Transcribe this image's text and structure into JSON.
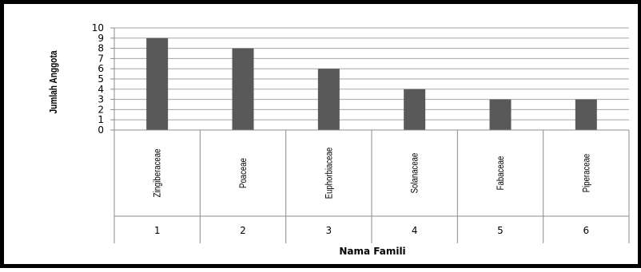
{
  "chart_data": {
    "type": "bar",
    "categories": [
      "1",
      "2",
      "3",
      "4",
      "5",
      "6"
    ],
    "category_names": [
      "Zingiberaceae",
      "Poaceae",
      "Euphorbiaceae",
      "Solanaceae",
      "Fabaceae",
      "Piperaceae"
    ],
    "values": [
      9,
      8,
      6,
      4,
      3,
      3
    ],
    "yticks": [
      0,
      1,
      2,
      3,
      4,
      5,
      6,
      7,
      8,
      9,
      10
    ],
    "ylim": [
      0,
      10
    ],
    "xlabel": "Nama Famili",
    "ylabel": "Jumlah Anggota",
    "grid": true,
    "bar_color": "#595959",
    "grid_color": "#a6a6a6"
  }
}
